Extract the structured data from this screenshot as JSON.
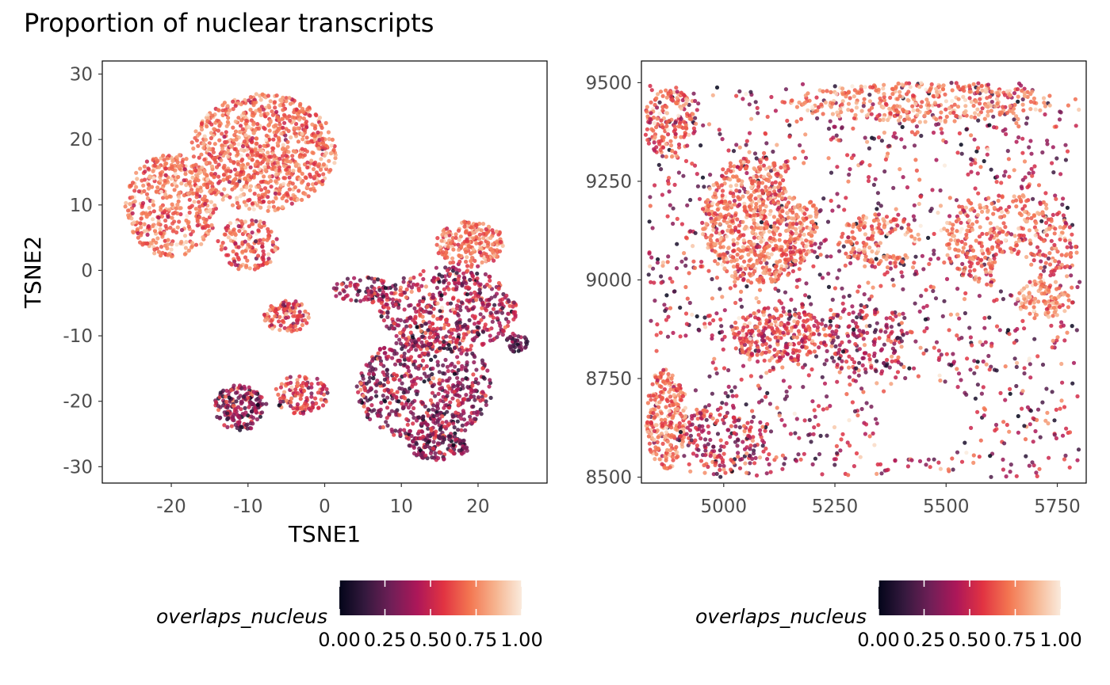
{
  "title": "Proportion of nuclear transcripts",
  "color_scale": {
    "name": "rocket",
    "stops": [
      "#03051a",
      "#35193e",
      "#701f57",
      "#ad1759",
      "#e13342",
      "#f37651",
      "#f6b48f",
      "#faebdd"
    ],
    "dot_opacity": 0.85
  },
  "chart_data": [
    {
      "type": "scatter",
      "panel": "left",
      "title": "",
      "xlabel": "TSNE1",
      "ylabel": "TSNE2",
      "xlim": [
        -29,
        29
      ],
      "ylim": [
        -32.5,
        32
      ],
      "xticks": [
        -20,
        -10,
        0,
        10,
        20
      ],
      "xtick_labels": [
        "-20",
        "-10",
        "0",
        "10",
        "20"
      ],
      "yticks": [
        -30,
        -20,
        -10,
        0,
        10,
        20,
        30
      ],
      "ytick_labels": [
        "-30",
        "-20",
        "-10",
        "0",
        "10",
        "20",
        "30"
      ],
      "grid": false,
      "color_variable": "overlaps_nucleus",
      "clusters": [
        {
          "cx": -8,
          "cy": 18,
          "rx": 9.5,
          "ry": 9,
          "n": 900,
          "cmean": 0.7,
          "csd": 0.12
        },
        {
          "cx": -20,
          "cy": 10,
          "rx": 6,
          "ry": 8,
          "n": 450,
          "cmean": 0.72,
          "csd": 0.12
        },
        {
          "cx": -10,
          "cy": 4,
          "rx": 4,
          "ry": 4,
          "n": 150,
          "cmean": 0.65,
          "csd": 0.15
        },
        {
          "cx": -5,
          "cy": -7,
          "rx": 3,
          "ry": 2.5,
          "n": 120,
          "cmean": 0.62,
          "csd": 0.15
        },
        {
          "cx": 19,
          "cy": 4,
          "rx": 4.5,
          "ry": 3.5,
          "n": 220,
          "cmean": 0.72,
          "csd": 0.12
        },
        {
          "cx": 16,
          "cy": -6,
          "rx": 9,
          "ry": 6.5,
          "n": 500,
          "cmean": 0.45,
          "csd": 0.18
        },
        {
          "cx": 13,
          "cy": -18,
          "rx": 9,
          "ry": 8,
          "n": 600,
          "cmean": 0.35,
          "csd": 0.16
        },
        {
          "cx": 15,
          "cy": -27,
          "rx": 4,
          "ry": 2,
          "n": 120,
          "cmean": 0.3,
          "csd": 0.14
        },
        {
          "cx": -11,
          "cy": -21,
          "rx": 3.5,
          "ry": 3.5,
          "n": 180,
          "cmean": 0.35,
          "csd": 0.16
        },
        {
          "cx": -3,
          "cy": -19,
          "rx": 3.5,
          "ry": 3,
          "n": 120,
          "cmean": 0.55,
          "csd": 0.15
        },
        {
          "cx": 5,
          "cy": -3,
          "rx": 4,
          "ry": 2,
          "n": 80,
          "cmean": 0.4,
          "csd": 0.15
        },
        {
          "cx": 25,
          "cy": -11,
          "rx": 1.5,
          "ry": 1.5,
          "n": 40,
          "cmean": 0.25,
          "csd": 0.12
        }
      ]
    },
    {
      "type": "scatter",
      "panel": "right",
      "title": "",
      "xlabel": "",
      "ylabel": "",
      "xlim": [
        4815,
        5815
      ],
      "ylim": [
        8485,
        9555
      ],
      "xticks": [
        5000,
        5250,
        5500,
        5750
      ],
      "xtick_labels": [
        "5000",
        "5250",
        "5500",
        "5750"
      ],
      "yticks": [
        8500,
        8750,
        9000,
        9250,
        9500
      ],
      "ytick_labels": [
        "8500",
        "8750",
        "9000",
        "9250",
        "9500"
      ],
      "grid": false,
      "color_variable": "overlaps_nucleus",
      "background": {
        "xmin": 4830,
        "xmax": 5800,
        "ymin": 8500,
        "ymax": 9500,
        "n": 1500,
        "cmean": 0.45,
        "csd": 0.22
      },
      "clusters": [
        {
          "cx": 5080,
          "cy": 9150,
          "rx": 130,
          "ry": 160,
          "n": 750,
          "cmean": 0.72,
          "csd": 0.12
        },
        {
          "cx": 5450,
          "cy": 9450,
          "rx": 300,
          "ry": 50,
          "n": 350,
          "cmean": 0.75,
          "csd": 0.12
        },
        {
          "cx": 5350,
          "cy": 9100,
          "rx": 90,
          "ry": 70,
          "n": 150,
          "cmean": 0.7,
          "csd": 0.12
        },
        {
          "cx": 5640,
          "cy": 9100,
          "rx": 150,
          "ry": 120,
          "n": 350,
          "cmean": 0.7,
          "csd": 0.12
        },
        {
          "cx": 5720,
          "cy": 8950,
          "rx": 60,
          "ry": 50,
          "n": 100,
          "cmean": 0.75,
          "csd": 0.1
        },
        {
          "cx": 4870,
          "cy": 8650,
          "rx": 45,
          "ry": 130,
          "n": 250,
          "cmean": 0.72,
          "csd": 0.12
        },
        {
          "cx": 5120,
          "cy": 8860,
          "rx": 110,
          "ry": 70,
          "n": 250,
          "cmean": 0.62,
          "csd": 0.15
        },
        {
          "cx": 4880,
          "cy": 9400,
          "rx": 60,
          "ry": 90,
          "n": 150,
          "cmean": 0.68,
          "csd": 0.14
        },
        {
          "cx": 5000,
          "cy": 8600,
          "rx": 100,
          "ry": 90,
          "n": 150,
          "cmean": 0.48,
          "csd": 0.18
        },
        {
          "cx": 5320,
          "cy": 8850,
          "rx": 100,
          "ry": 90,
          "n": 150,
          "cmean": 0.45,
          "csd": 0.18
        }
      ],
      "holes": [
        {
          "cx": 4920,
          "cy": 8800,
          "r": 55
        },
        {
          "cx": 5180,
          "cy": 9250,
          "r": 45
        },
        {
          "cx": 5650,
          "cy": 9020,
          "r": 45
        },
        {
          "cx": 5450,
          "cy": 8650,
          "r": 100
        },
        {
          "cx": 5000,
          "cy": 9430,
          "r": 35
        },
        {
          "cx": 5390,
          "cy": 9090,
          "r": 30
        }
      ]
    }
  ],
  "legends": [
    {
      "title": "overlaps_nucleus",
      "tick_labels": [
        "0.00",
        "0.25",
        "0.50",
        "0.75",
        "1.00"
      ],
      "ticks": [
        0,
        0.25,
        0.5,
        0.75,
        1
      ]
    },
    {
      "title": "overlaps_nucleus",
      "tick_labels": [
        "0.00",
        "0.25",
        "0.50",
        "0.75",
        "1.00"
      ],
      "ticks": [
        0,
        0.25,
        0.5,
        0.75,
        1
      ]
    }
  ]
}
